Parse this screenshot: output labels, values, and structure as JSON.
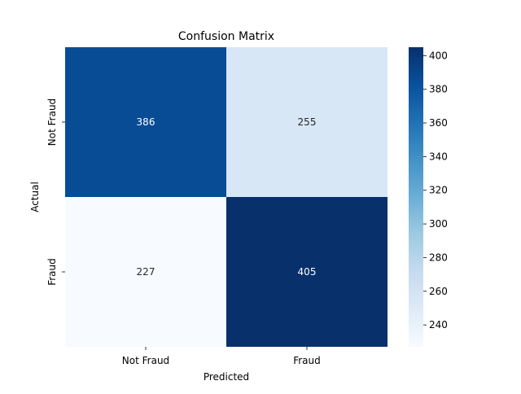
{
  "chart_data": {
    "type": "heatmap",
    "title": "Confusion Matrix",
    "xlabel": "Predicted",
    "ylabel": "Actual",
    "x_categories": [
      "Not Fraud",
      "Fraud"
    ],
    "y_categories": [
      "Not Fraud",
      "Fraud"
    ],
    "values": [
      [
        386,
        255
      ],
      [
        227,
        405
      ]
    ],
    "colormap": "Blues",
    "colorbar": {
      "range": [
        227,
        405
      ],
      "ticks": [
        240,
        260,
        280,
        300,
        320,
        340,
        360,
        380,
        400
      ]
    },
    "grid": false
  }
}
